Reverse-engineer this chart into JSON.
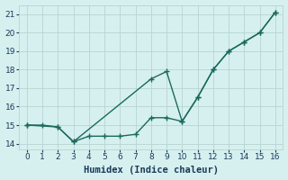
{
  "line1_x": [
    0,
    2,
    3,
    8,
    9,
    10,
    11,
    12,
    13,
    14,
    15,
    16
  ],
  "line1_y": [
    15.0,
    14.9,
    14.1,
    17.5,
    17.9,
    15.2,
    16.5,
    18.0,
    19.0,
    19.5,
    20.0,
    21.1
  ],
  "line2_x": [
    0,
    1,
    2,
    3,
    4,
    5,
    6,
    7,
    8,
    9,
    10,
    11,
    12,
    13,
    14,
    15,
    16
  ],
  "line2_y": [
    15.0,
    15.0,
    14.9,
    14.1,
    14.4,
    14.4,
    14.4,
    14.5,
    15.4,
    15.4,
    15.2,
    16.5,
    18.0,
    19.0,
    19.5,
    20.0,
    21.1
  ],
  "line_color": "#1a6b5a",
  "bg_color": "#d6f0ef",
  "grid_color": "#b8d4d0",
  "xlabel": "Humidex (Indice chaleur)",
  "xlim": [
    -0.5,
    16.5
  ],
  "ylim": [
    13.7,
    21.5
  ],
  "yticks": [
    14,
    15,
    16,
    17,
    18,
    19,
    20,
    21
  ],
  "xticks": [
    0,
    1,
    2,
    3,
    4,
    5,
    6,
    7,
    8,
    9,
    10,
    11,
    12,
    13,
    14,
    15,
    16
  ],
  "font_color": "#1a3a5a",
  "xlabel_fontsize": 7.5,
  "tick_fontsize": 6.5
}
